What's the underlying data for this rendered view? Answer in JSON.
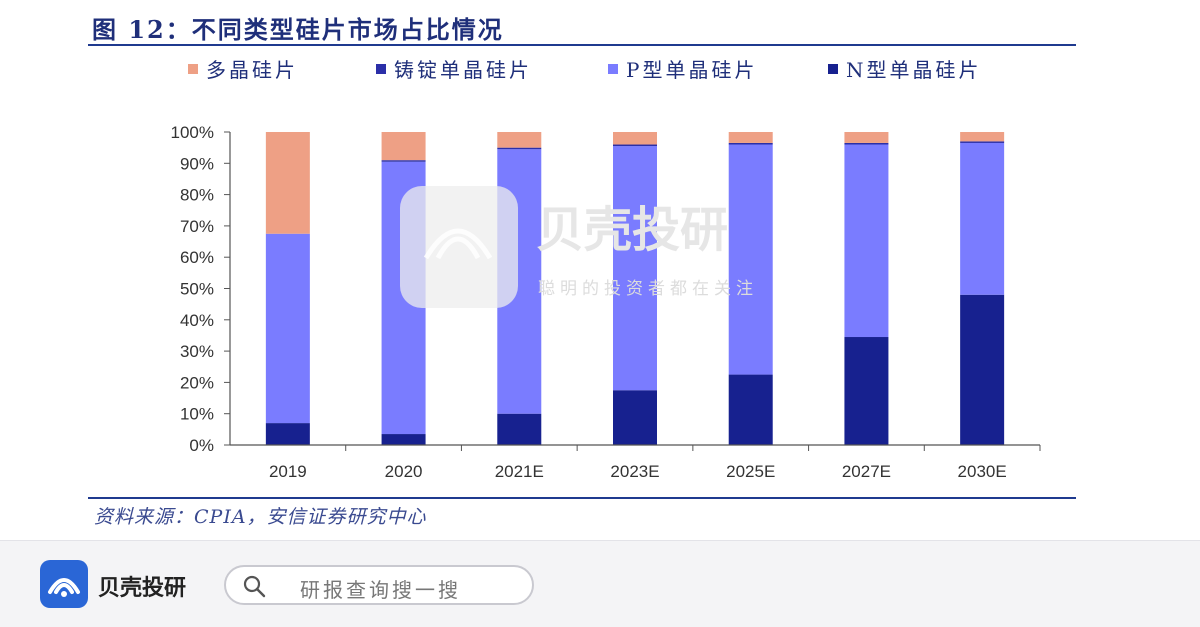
{
  "figure": {
    "title": "图 12：不同类型硅片市场占比情况",
    "source": "资料来源：CPIA，安信证券研究中心"
  },
  "chart_data": {
    "type": "bar",
    "stacked": true,
    "categories": [
      "2019",
      "2020",
      "2021E",
      "2023E",
      "2025E",
      "2027E",
      "2030E"
    ],
    "series": [
      {
        "name": "N型单晶硅片",
        "color": "#17218f",
        "values": [
          7,
          3.5,
          10,
          17.5,
          22.5,
          34.5,
          48
        ]
      },
      {
        "name": "P型单晶硅片",
        "color": "#7a7cff",
        "values": [
          60.5,
          87,
          84.5,
          78,
          73.5,
          61.5,
          48.5
        ]
      },
      {
        "name": "铸锭单晶硅片",
        "color": "#2b2fa8",
        "values": [
          0,
          0.5,
          0.5,
          0.5,
          0.5,
          0.5,
          0.5
        ]
      },
      {
        "name": "多晶硅片",
        "color": "#eea085",
        "values": [
          32.5,
          9,
          5,
          4,
          3.5,
          3.5,
          3
        ]
      }
    ],
    "legend_order": [
      "多晶硅片",
      "铸锭单晶硅片",
      "P型单晶硅片",
      "N型单晶硅片"
    ],
    "yticks": [
      "0%",
      "10%",
      "20%",
      "30%",
      "40%",
      "50%",
      "60%",
      "70%",
      "80%",
      "90%",
      "100%"
    ],
    "ylim": [
      0,
      100
    ],
    "legend_position": "top",
    "grid": false
  },
  "watermark": {
    "brand": "贝壳投研",
    "tagline": "聪明的投资者都在关注"
  },
  "footer": {
    "brand": "贝壳投研",
    "search_placeholder": "研报查询搜一搜"
  }
}
